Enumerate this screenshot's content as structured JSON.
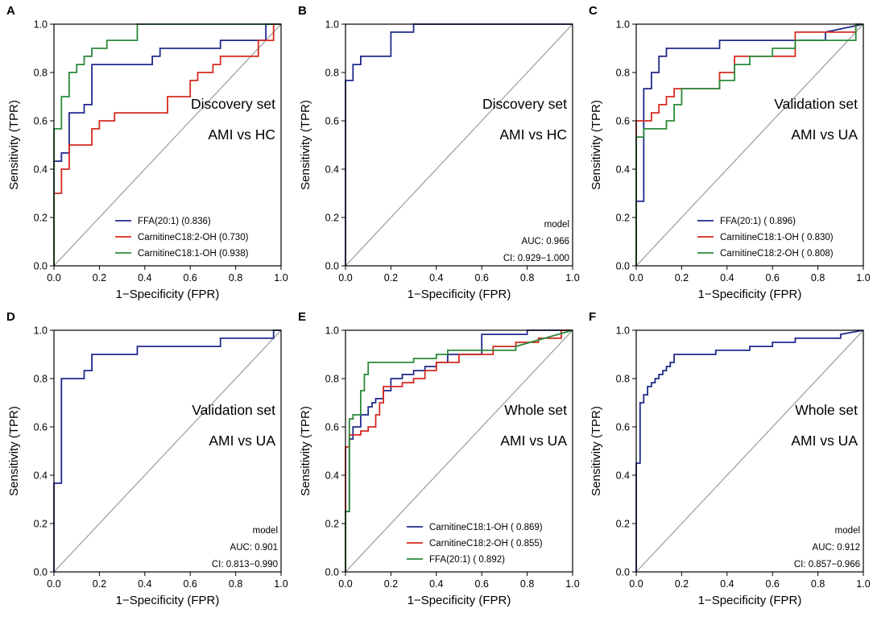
{
  "figure": {
    "xlabel": "1−Specificity (FPR)",
    "ylabel": "Sensitivity (TPR)",
    "ticks": [
      "0.0",
      "0.2",
      "0.4",
      "0.6",
      "0.8",
      "1.0"
    ]
  },
  "chart_data": [
    {
      "type": "line",
      "panel_label": "A",
      "title_lines": [
        "Discovery set",
        "AMI vs HC"
      ],
      "xlabel": "1−Specificity (FPR)",
      "ylabel": "Sensitivity (TPR)",
      "xlim": [
        0,
        1
      ],
      "ylim": [
        0,
        1
      ],
      "legend": "bottom-right",
      "series": [
        {
          "name": "FFA(20:1) (0.836)",
          "color": "#1f2a8a",
          "x": [
            0,
            0,
            0.033,
            0.033,
            0.067,
            0.067,
            0.133,
            0.133,
            0.167,
            0.167,
            0.433,
            0.433,
            0.467,
            0.467,
            0.633,
            0.633,
            0.733,
            0.733,
            0.933,
            0.933,
            1
          ],
          "y": [
            0,
            0.433,
            0.433,
            0.467,
            0.467,
            0.633,
            0.633,
            0.667,
            0.667,
            0.833,
            0.833,
            0.867,
            0.867,
            0.9,
            0.9,
            0.9,
            0.9,
            0.933,
            0.933,
            1,
            1
          ]
        },
        {
          "name": "CarnitineC18:2-OH (0.730)",
          "color": "#d42a20",
          "x": [
            0,
            0,
            0.033,
            0.033,
            0.067,
            0.067,
            0.167,
            0.167,
            0.2,
            0.2,
            0.267,
            0.267,
            0.5,
            0.5,
            0.6,
            0.6,
            0.633,
            0.633,
            0.7,
            0.7,
            0.733,
            0.733,
            0.9,
            0.9,
            0.967,
            0.967,
            1
          ],
          "y": [
            0,
            0.3,
            0.3,
            0.4,
            0.4,
            0.5,
            0.5,
            0.567,
            0.567,
            0.6,
            0.6,
            0.633,
            0.633,
            0.7,
            0.7,
            0.767,
            0.767,
            0.8,
            0.8,
            0.833,
            0.833,
            0.867,
            0.867,
            0.933,
            0.933,
            1,
            1
          ]
        },
        {
          "name": "CarnitineC18:1-OH (0.938)",
          "color": "#2a8a3a",
          "x": [
            0,
            0,
            0.033,
            0.033,
            0.067,
            0.067,
            0.1,
            0.1,
            0.133,
            0.133,
            0.167,
            0.167,
            0.233,
            0.233,
            0.367,
            0.367,
            1
          ],
          "y": [
            0,
            0.567,
            0.567,
            0.7,
            0.7,
            0.8,
            0.8,
            0.833,
            0.833,
            0.867,
            0.867,
            0.9,
            0.9,
            0.933,
            0.933,
            1,
            1
          ]
        }
      ]
    },
    {
      "type": "line",
      "panel_label": "B",
      "title_lines": [
        "Discovery set",
        "AMI vs HC"
      ],
      "xlabel": "1−Specificity (FPR)",
      "ylabel": "Sensitivity (TPR)",
      "xlim": [
        0,
        1
      ],
      "ylim": [
        0,
        1
      ],
      "legend": "bottom-right",
      "model_text": [
        "model",
        "AUC: 0.966",
        "CI: 0.929−1.000"
      ],
      "series": [
        {
          "name": "model",
          "color": "#1f2a8a",
          "x": [
            0,
            0,
            0.033,
            0.033,
            0.067,
            0.067,
            0.2,
            0.2,
            0.3,
            0.3,
            1
          ],
          "y": [
            0,
            0.767,
            0.767,
            0.833,
            0.833,
            0.867,
            0.867,
            0.967,
            0.967,
            1,
            1
          ]
        }
      ]
    },
    {
      "type": "line",
      "panel_label": "C",
      "title_lines": [
        "Validation set",
        "AMI vs UA"
      ],
      "xlabel": "1−Specificity (FPR)",
      "ylabel": "Sensitivity (TPR)",
      "xlim": [
        0,
        1
      ],
      "ylim": [
        0,
        1
      ],
      "legend": "bottom-right",
      "series": [
        {
          "name": "FFA(20:1) ( 0.896)",
          "color": "#1f2a8a",
          "x": [
            0,
            0,
            0.033,
            0.033,
            0.067,
            0.067,
            0.1,
            0.1,
            0.133,
            0.133,
            0.367,
            0.367,
            0.833,
            0.833,
            1
          ],
          "y": [
            0,
            0.267,
            0.267,
            0.733,
            0.733,
            0.8,
            0.8,
            0.867,
            0.867,
            0.9,
            0.9,
            0.933,
            0.933,
            0.967,
            1
          ]
        },
        {
          "name": "CarnitineC18:1-OH ( 0.830)",
          "color": "#d42a20",
          "x": [
            0,
            0,
            0.067,
            0.067,
            0.1,
            0.1,
            0.133,
            0.133,
            0.167,
            0.167,
            0.367,
            0.367,
            0.433,
            0.433,
            0.7,
            0.7,
            0.967,
            0.967,
            1
          ],
          "y": [
            0,
            0.6,
            0.6,
            0.633,
            0.633,
            0.667,
            0.667,
            0.7,
            0.7,
            0.733,
            0.733,
            0.8,
            0.8,
            0.867,
            0.867,
            0.967,
            0.967,
            1,
            1
          ]
        },
        {
          "name": "CarnitineC18:2-OH ( 0.808)",
          "color": "#2a8a3a",
          "x": [
            0,
            0,
            0.033,
            0.033,
            0.133,
            0.133,
            0.167,
            0.167,
            0.2,
            0.2,
            0.333,
            0.333,
            0.367,
            0.367,
            0.433,
            0.433,
            0.5,
            0.5,
            0.6,
            0.6,
            0.7,
            0.7,
            0.967,
            0.967,
            1
          ],
          "y": [
            0,
            0.533,
            0.533,
            0.567,
            0.567,
            0.6,
            0.6,
            0.667,
            0.667,
            0.733,
            0.733,
            0.733,
            0.733,
            0.767,
            0.767,
            0.833,
            0.833,
            0.867,
            0.867,
            0.9,
            0.9,
            0.933,
            0.933,
            1,
            1
          ]
        }
      ]
    },
    {
      "type": "line",
      "panel_label": "D",
      "title_lines": [
        "Validation set",
        "AMI vs UA"
      ],
      "xlabel": "1−Specificity (FPR)",
      "ylabel": "Sensitivity (TPR)",
      "xlim": [
        0,
        1
      ],
      "ylim": [
        0,
        1
      ],
      "legend": "bottom-right",
      "model_text": [
        "model",
        "AUC: 0.901",
        "CI: 0.813−0.990"
      ],
      "series": [
        {
          "name": "model",
          "color": "#1f2a8a",
          "x": [
            0,
            0,
            0.033,
            0.033,
            0.133,
            0.133,
            0.167,
            0.167,
            0.367,
            0.367,
            0.733,
            0.733,
            0.967,
            0.967,
            1
          ],
          "y": [
            0,
            0.367,
            0.367,
            0.8,
            0.8,
            0.833,
            0.833,
            0.9,
            0.9,
            0.933,
            0.933,
            0.967,
            0.967,
            1,
            1
          ]
        }
      ]
    },
    {
      "type": "line",
      "panel_label": "E",
      "title_lines": [
        "Whole set",
        "AMI vs UA"
      ],
      "xlabel": "1−Specificity (FPR)",
      "ylabel": "Sensitivity (TPR)",
      "xlim": [
        0,
        1
      ],
      "ylim": [
        0,
        1
      ],
      "legend": "bottom-right",
      "series": [
        {
          "name": "CarnitineC18:1-OH ( 0.869)",
          "color": "#1f2a8a",
          "x": [
            0,
            0,
            0.017,
            0.017,
            0.033,
            0.033,
            0.067,
            0.067,
            0.1,
            0.1,
            0.117,
            0.117,
            0.133,
            0.133,
            0.167,
            0.167,
            0.2,
            0.2,
            0.25,
            0.25,
            0.3,
            0.3,
            0.35,
            0.35,
            0.4,
            0.4,
            0.45,
            0.45,
            0.6,
            0.6,
            0.8,
            0.8,
            1
          ],
          "y": [
            0,
            0.25,
            0.25,
            0.55,
            0.55,
            0.6,
            0.6,
            0.65,
            0.65,
            0.683,
            0.683,
            0.7,
            0.7,
            0.717,
            0.717,
            0.75,
            0.75,
            0.8,
            0.8,
            0.817,
            0.817,
            0.833,
            0.833,
            0.85,
            0.85,
            0.867,
            0.867,
            0.9,
            0.9,
            0.983,
            0.983,
            1,
            1
          ]
        },
        {
          "name": "CarnitineC18:2-OH ( 0.855)",
          "color": "#d42a20",
          "x": [
            0,
            0,
            0.017,
            0.017,
            0.067,
            0.067,
            0.1,
            0.1,
            0.133,
            0.133,
            0.15,
            0.15,
            0.167,
            0.167,
            0.25,
            0.25,
            0.3,
            0.3,
            0.35,
            0.35,
            0.4,
            0.4,
            0.5,
            0.5,
            0.65,
            0.65,
            0.75,
            0.75,
            0.85,
            0.85,
            0.95,
            0.95,
            1
          ],
          "y": [
            0,
            0.517,
            0.517,
            0.567,
            0.567,
            0.583,
            0.583,
            0.6,
            0.6,
            0.65,
            0.65,
            0.7,
            0.7,
            0.767,
            0.767,
            0.783,
            0.783,
            0.8,
            0.8,
            0.833,
            0.833,
            0.867,
            0.867,
            0.9,
            0.9,
            0.933,
            0.933,
            0.95,
            0.95,
            0.967,
            0.967,
            1,
            1
          ]
        },
        {
          "name": "FFA(20:1) ( 0.892)",
          "color": "#2a8a3a",
          "x": [
            0,
            0,
            0.017,
            0.017,
            0.033,
            0.033,
            0.067,
            0.067,
            0.083,
            0.083,
            0.1,
            0.1,
            0.2,
            0.2,
            0.3,
            0.3,
            0.4,
            0.4,
            0.45,
            0.45,
            0.75,
            0.75,
            1
          ],
          "y": [
            0,
            0.25,
            0.25,
            0.633,
            0.633,
            0.65,
            0.65,
            0.75,
            0.75,
            0.817,
            0.817,
            0.867,
            0.867,
            0.867,
            0.867,
            0.883,
            0.883,
            0.9,
            0.9,
            0.917,
            0.917,
            0.933,
            1
          ]
        }
      ]
    },
    {
      "type": "line",
      "panel_label": "F",
      "title_lines": [
        "Whole set",
        "AMI vs UA"
      ],
      "xlabel": "1−Specificity (FPR)",
      "ylabel": "Sensitivity (TPR)",
      "xlim": [
        0,
        1
      ],
      "ylim": [
        0,
        1
      ],
      "legend": "bottom-right",
      "model_text": [
        "model",
        "AUC: 0.912",
        "CI: 0.857−0.966"
      ],
      "series": [
        {
          "name": "model",
          "color": "#1f2a8a",
          "x": [
            0,
            0,
            0.017,
            0.017,
            0.033,
            0.033,
            0.05,
            0.05,
            0.067,
            0.067,
            0.083,
            0.083,
            0.1,
            0.1,
            0.117,
            0.117,
            0.133,
            0.133,
            0.15,
            0.15,
            0.167,
            0.167,
            0.35,
            0.35,
            0.5,
            0.5,
            0.6,
            0.6,
            0.7,
            0.7,
            0.9,
            0.9,
            1
          ],
          "y": [
            0,
            0.45,
            0.45,
            0.7,
            0.7,
            0.733,
            0.733,
            0.767,
            0.767,
            0.783,
            0.783,
            0.8,
            0.8,
            0.817,
            0.817,
            0.833,
            0.833,
            0.85,
            0.85,
            0.867,
            0.867,
            0.9,
            0.9,
            0.917,
            0.917,
            0.933,
            0.933,
            0.95,
            0.95,
            0.967,
            0.967,
            0.983,
            1
          ]
        }
      ]
    }
  ]
}
